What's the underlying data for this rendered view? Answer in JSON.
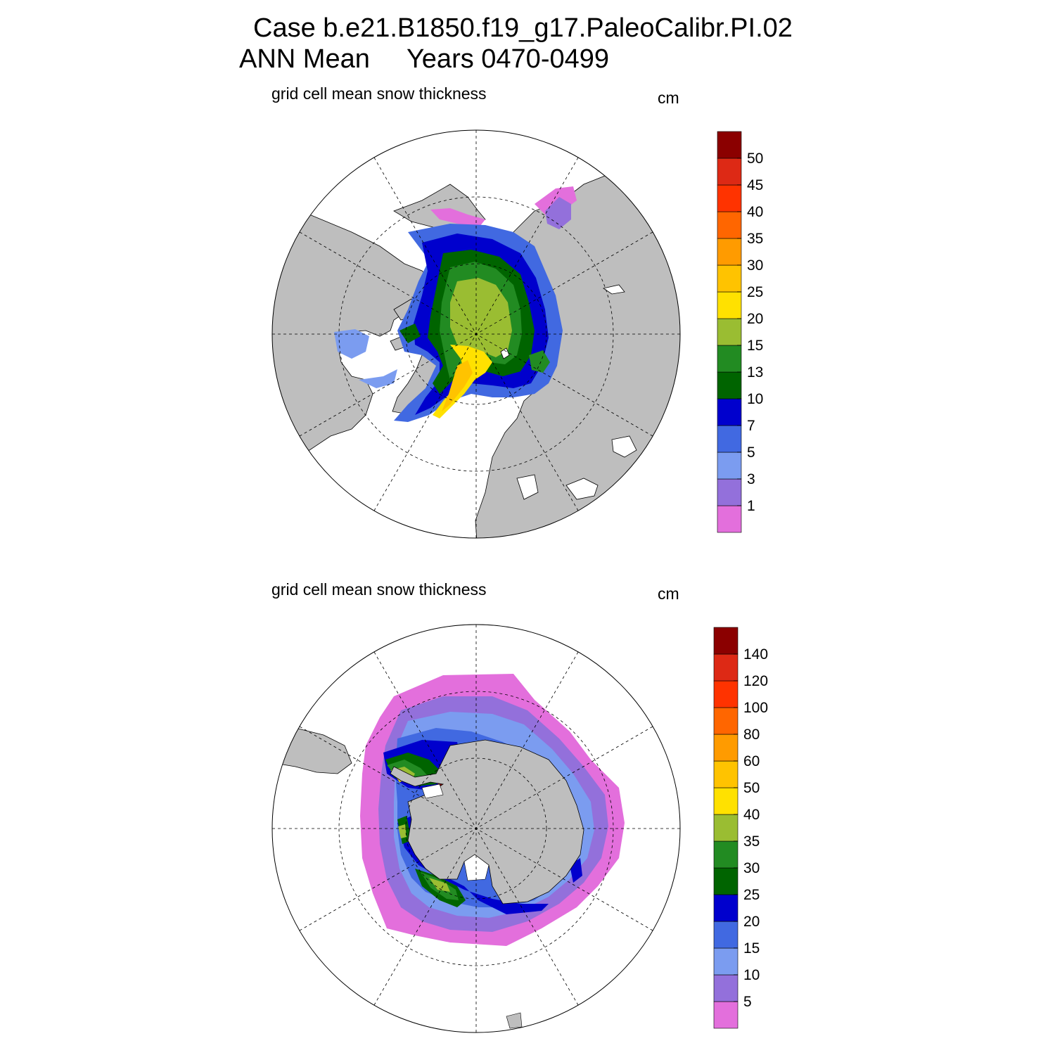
{
  "header": {
    "case_line": "Case b.e21.B1850.f19_g17.PaleoCalibr.PI.02",
    "period_line": "ANN Mean     Years 0470-0499"
  },
  "panels": [
    {
      "hemisphere": "north",
      "title": "grid cell mean snow thickness",
      "units": "cm",
      "colorbar": {
        "labels": [
          "1",
          "3",
          "5",
          "7",
          "10",
          "13",
          "15",
          "20",
          "25",
          "30",
          "35",
          "40",
          "45",
          "50"
        ],
        "colors": [
          "#e36fdc",
          "#9370db",
          "#7b9cf0",
          "#4169e1",
          "#0000cd",
          "#006400",
          "#228b22",
          "#9abd32",
          "#ffe100",
          "#ffc300",
          "#ff9b00",
          "#ff6600",
          "#ff3300",
          "#dd2915",
          "#8b0000"
        ]
      }
    },
    {
      "hemisphere": "south",
      "title": "grid cell mean snow thickness",
      "units": "cm",
      "colorbar": {
        "labels": [
          "5",
          "10",
          "15",
          "20",
          "25",
          "30",
          "35",
          "40",
          "50",
          "60",
          "80",
          "100",
          "120",
          "140"
        ],
        "colors": [
          "#e36fdc",
          "#9370db",
          "#7b9cf0",
          "#4169e1",
          "#0000cd",
          "#006400",
          "#228b22",
          "#9abd32",
          "#ffe100",
          "#ffc300",
          "#ff9b00",
          "#ff6600",
          "#ff3300",
          "#dd2915",
          "#8b0000"
        ]
      }
    }
  ],
  "colors": {
    "land": "#bebebe",
    "ocean": "#ffffff",
    "graticule": "#000000"
  }
}
